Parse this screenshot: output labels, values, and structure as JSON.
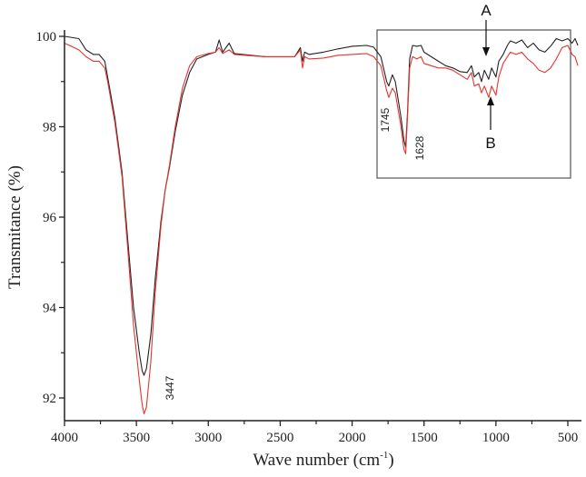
{
  "chart_data": {
    "type": "line",
    "title": "",
    "xlabel": "Wave number (cm⁻¹)",
    "xlabel_main": "Wave number (cm",
    "xlabel_sup": "-1",
    "xlabel_close": ")",
    "ylabel": "Transmitance (%)",
    "xlim": [
      4000,
      430
    ],
    "ylim": [
      91.5,
      100.1
    ],
    "x_reversed": true,
    "grid": false,
    "legend": null,
    "x_ticks": [
      4000,
      3500,
      3000,
      2500,
      2000,
      1500,
      1000,
      500
    ],
    "x_tick_labels": [
      "4000",
      "3500",
      "3000",
      "2500",
      "2000",
      "1500",
      "1000",
      "500"
    ],
    "x_minor_ticks": [
      3750,
      3250,
      2750,
      2250,
      1750,
      1250,
      750
    ],
    "y_ticks": [
      92,
      94,
      96,
      98,
      100
    ],
    "y_tick_labels": [
      "92",
      "94",
      "96",
      "98",
      "100"
    ],
    "y_minor_ticks": [
      93,
      95,
      97,
      99
    ],
    "series": [
      {
        "name": "A",
        "color": "#222222",
        "points": [
          [
            4000,
            100.0
          ],
          [
            3900,
            99.95
          ],
          [
            3850,
            99.7
          ],
          [
            3800,
            99.6
          ],
          [
            3760,
            99.6
          ],
          [
            3720,
            99.45
          ],
          [
            3700,
            99.1
          ],
          [
            3650,
            98.2
          ],
          [
            3600,
            97.0
          ],
          [
            3560,
            95.5
          ],
          [
            3520,
            94.0
          ],
          [
            3480,
            93.0
          ],
          [
            3460,
            92.6
          ],
          [
            3447,
            92.5
          ],
          [
            3430,
            92.65
          ],
          [
            3400,
            93.4
          ],
          [
            3370,
            94.6
          ],
          [
            3330,
            95.9
          ],
          [
            3300,
            96.6
          ],
          [
            3270,
            97.1
          ],
          [
            3230,
            97.9
          ],
          [
            3180,
            98.7
          ],
          [
            3130,
            99.2
          ],
          [
            3080,
            99.5
          ],
          [
            3000,
            99.6
          ],
          [
            2950,
            99.65
          ],
          [
            2925,
            99.92
          ],
          [
            2900,
            99.65
          ],
          [
            2855,
            99.85
          ],
          [
            2820,
            99.62
          ],
          [
            2700,
            99.58
          ],
          [
            2600,
            99.55
          ],
          [
            2500,
            99.55
          ],
          [
            2400,
            99.55
          ],
          [
            2360,
            99.75
          ],
          [
            2345,
            99.45
          ],
          [
            2330,
            99.65
          ],
          [
            2300,
            99.6
          ],
          [
            2200,
            99.65
          ],
          [
            2100,
            99.72
          ],
          [
            2000,
            99.78
          ],
          [
            1900,
            99.8
          ],
          [
            1850,
            99.76
          ],
          [
            1800,
            99.55
          ],
          [
            1760,
            99.0
          ],
          [
            1745,
            98.9
          ],
          [
            1720,
            99.15
          ],
          [
            1700,
            99.0
          ],
          [
            1660,
            98.2
          ],
          [
            1640,
            97.7
          ],
          [
            1628,
            97.55
          ],
          [
            1615,
            98.3
          ],
          [
            1600,
            99.5
          ],
          [
            1580,
            99.8
          ],
          [
            1550,
            99.78
          ],
          [
            1520,
            99.8
          ],
          [
            1500,
            99.65
          ],
          [
            1450,
            99.55
          ],
          [
            1400,
            99.45
          ],
          [
            1350,
            99.35
          ],
          [
            1300,
            99.3
          ],
          [
            1250,
            99.22
          ],
          [
            1200,
            99.2
          ],
          [
            1170,
            99.35
          ],
          [
            1150,
            99.1
          ],
          [
            1120,
            99.2
          ],
          [
            1100,
            99.0
          ],
          [
            1080,
            99.25
          ],
          [
            1050,
            99.05
          ],
          [
            1030,
            99.3
          ],
          [
            1000,
            99.1
          ],
          [
            980,
            99.45
          ],
          [
            950,
            99.6
          ],
          [
            920,
            99.8
          ],
          [
            900,
            99.9
          ],
          [
            860,
            99.85
          ],
          [
            820,
            99.92
          ],
          [
            780,
            99.75
          ],
          [
            740,
            99.85
          ],
          [
            700,
            99.7
          ],
          [
            660,
            99.65
          ],
          [
            620,
            99.78
          ],
          [
            580,
            99.95
          ],
          [
            540,
            99.9
          ],
          [
            500,
            99.95
          ],
          [
            470,
            99.85
          ],
          [
            450,
            99.95
          ],
          [
            430,
            99.8
          ]
        ]
      },
      {
        "name": "B",
        "color": "#e8332e",
        "points": [
          [
            4000,
            99.85
          ],
          [
            3900,
            99.7
          ],
          [
            3850,
            99.55
          ],
          [
            3800,
            99.45
          ],
          [
            3760,
            99.45
          ],
          [
            3720,
            99.3
          ],
          [
            3700,
            99.0
          ],
          [
            3650,
            98.1
          ],
          [
            3600,
            96.9
          ],
          [
            3560,
            95.3
          ],
          [
            3520,
            93.6
          ],
          [
            3480,
            92.4
          ],
          [
            3460,
            91.85
          ],
          [
            3447,
            91.65
          ],
          [
            3430,
            91.8
          ],
          [
            3400,
            92.8
          ],
          [
            3370,
            94.3
          ],
          [
            3330,
            95.8
          ],
          [
            3300,
            96.6
          ],
          [
            3270,
            97.15
          ],
          [
            3230,
            98.0
          ],
          [
            3180,
            98.85
          ],
          [
            3130,
            99.35
          ],
          [
            3080,
            99.55
          ],
          [
            3000,
            99.62
          ],
          [
            2950,
            99.65
          ],
          [
            2925,
            99.75
          ],
          [
            2900,
            99.62
          ],
          [
            2855,
            99.7
          ],
          [
            2820,
            99.6
          ],
          [
            2700,
            99.57
          ],
          [
            2600,
            99.55
          ],
          [
            2500,
            99.55
          ],
          [
            2400,
            99.55
          ],
          [
            2360,
            99.7
          ],
          [
            2345,
            99.3
          ],
          [
            2330,
            99.55
          ],
          [
            2300,
            99.5
          ],
          [
            2200,
            99.52
          ],
          [
            2100,
            99.58
          ],
          [
            2000,
            99.6
          ],
          [
            1900,
            99.62
          ],
          [
            1850,
            99.55
          ],
          [
            1800,
            99.35
          ],
          [
            1760,
            98.8
          ],
          [
            1745,
            98.65
          ],
          [
            1720,
            98.85
          ],
          [
            1700,
            98.75
          ],
          [
            1660,
            98.0
          ],
          [
            1640,
            97.5
          ],
          [
            1628,
            97.4
          ],
          [
            1615,
            98.2
          ],
          [
            1600,
            99.3
          ],
          [
            1580,
            99.55
          ],
          [
            1550,
            99.5
          ],
          [
            1520,
            99.55
          ],
          [
            1500,
            99.4
          ],
          [
            1450,
            99.35
          ],
          [
            1400,
            99.3
          ],
          [
            1350,
            99.3
          ],
          [
            1300,
            99.25
          ],
          [
            1250,
            99.15
          ],
          [
            1200,
            99.05
          ],
          [
            1170,
            99.2
          ],
          [
            1150,
            98.9
          ],
          [
            1120,
            98.95
          ],
          [
            1100,
            98.75
          ],
          [
            1080,
            98.9
          ],
          [
            1050,
            98.65
          ],
          [
            1030,
            98.9
          ],
          [
            1000,
            98.7
          ],
          [
            980,
            99.1
          ],
          [
            950,
            99.4
          ],
          [
            920,
            99.55
          ],
          [
            900,
            99.65
          ],
          [
            860,
            99.6
          ],
          [
            820,
            99.65
          ],
          [
            780,
            99.5
          ],
          [
            740,
            99.4
          ],
          [
            700,
            99.25
          ],
          [
            660,
            99.2
          ],
          [
            620,
            99.3
          ],
          [
            580,
            99.5
          ],
          [
            540,
            99.75
          ],
          [
            500,
            99.8
          ],
          [
            470,
            99.6
          ],
          [
            450,
            99.55
          ],
          [
            430,
            99.35
          ]
        ]
      }
    ],
    "annotations": [
      {
        "text": "3447",
        "x": 3447,
        "rotated": true
      },
      {
        "text": "1745",
        "x": 1745,
        "rotated": true
      },
      {
        "text": "1628",
        "x": 1628,
        "rotated": true
      },
      {
        "text": "A",
        "type": "arrow-label",
        "points_to": "black curve",
        "x": 1040
      },
      {
        "text": "B",
        "type": "arrow-label",
        "points_to": "red curve",
        "x": 1040
      }
    ],
    "inset_box": {
      "x_range": [
        1830,
        480
      ],
      "y_range": [
        96.85,
        100.15
      ]
    }
  }
}
